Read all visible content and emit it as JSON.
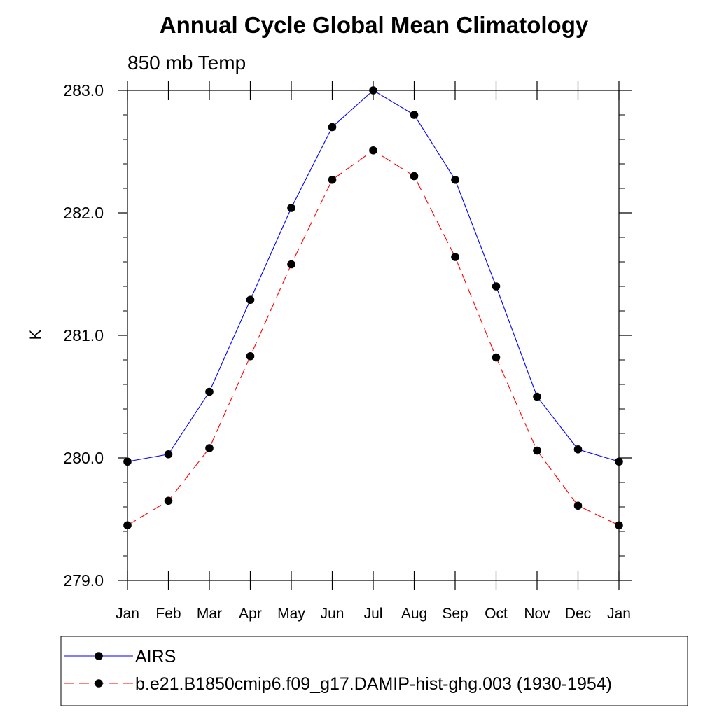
{
  "chart_data": {
    "type": "line",
    "title": "Annual Cycle Global Mean Climatology",
    "subtitle": "850 mb Temp",
    "ylabel": "K",
    "xlabel": "",
    "categories": [
      "Jan",
      "Feb",
      "Mar",
      "Apr",
      "May",
      "Jun",
      "Jul",
      "Aug",
      "Sep",
      "Oct",
      "Nov",
      "Dec",
      "Jan"
    ],
    "ylim": [
      279.0,
      283.0
    ],
    "yticks": [
      "279.0",
      "280.0",
      "281.0",
      "282.0",
      "283.0"
    ],
    "yminor_step": 0.2,
    "grid": false,
    "legend_position": "bottom",
    "series": [
      {
        "name": "AIRS",
        "color": "#0000ff",
        "dash": "solid",
        "marker": "circle",
        "values": [
          279.97,
          280.03,
          280.54,
          281.29,
          282.04,
          282.7,
          283.0,
          282.8,
          282.27,
          281.4,
          280.5,
          280.07,
          279.97
        ]
      },
      {
        "name": "b.e21.B1850cmip6.f09_g17.DAMIP-hist-ghg.003 (1930-1954)",
        "color": "#ff0000",
        "dash": "dashed",
        "marker": "circle",
        "values": [
          279.45,
          279.65,
          280.08,
          280.83,
          281.58,
          282.27,
          282.51,
          282.3,
          281.64,
          280.82,
          280.06,
          279.61,
          279.45
        ]
      }
    ]
  }
}
